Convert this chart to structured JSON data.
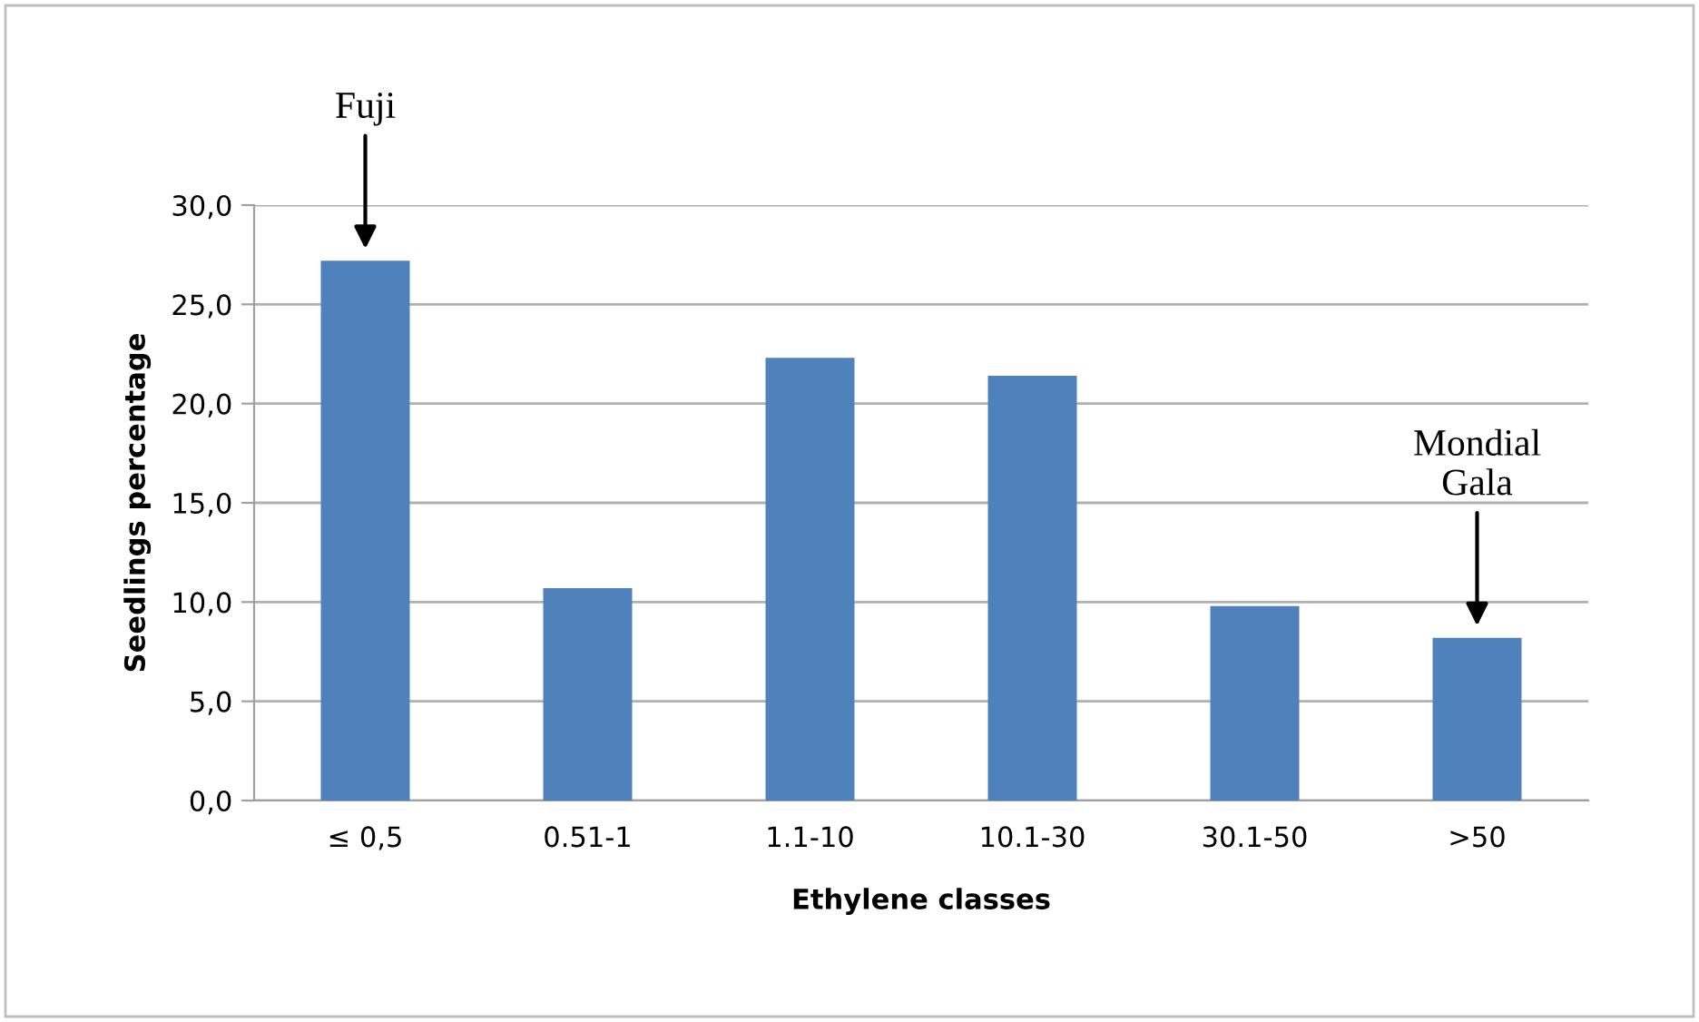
{
  "chart_data": {
    "type": "bar",
    "xlabel": "Ethylene classes",
    "ylabel": "Seedlings percentage",
    "categories": [
      "≤ 0,5",
      "0.51-1",
      "1.1-10",
      "10.1-30",
      "30.1-50",
      ">50"
    ],
    "values": [
      27.2,
      10.7,
      22.3,
      21.4,
      9.8,
      8.2
    ],
    "color": "#4f81bd",
    "ylim": [
      0,
      30
    ],
    "yticks": [
      {
        "value": 0,
        "label": "0,0"
      },
      {
        "value": 5,
        "label": "5,0"
      },
      {
        "value": 10,
        "label": "10,0"
      },
      {
        "value": 15,
        "label": "15,0"
      },
      {
        "value": 20,
        "label": "20,0"
      },
      {
        "value": 25,
        "label": "25,0"
      },
      {
        "value": 30,
        "label": "30,0"
      }
    ],
    "grid": "y",
    "annotations": [
      {
        "text": "Fuji",
        "x": "≤ 0,5",
        "y": 27.2
      },
      {
        "text": "Mondial\nGala",
        "x": ">50",
        "y": 8.2
      }
    ]
  }
}
